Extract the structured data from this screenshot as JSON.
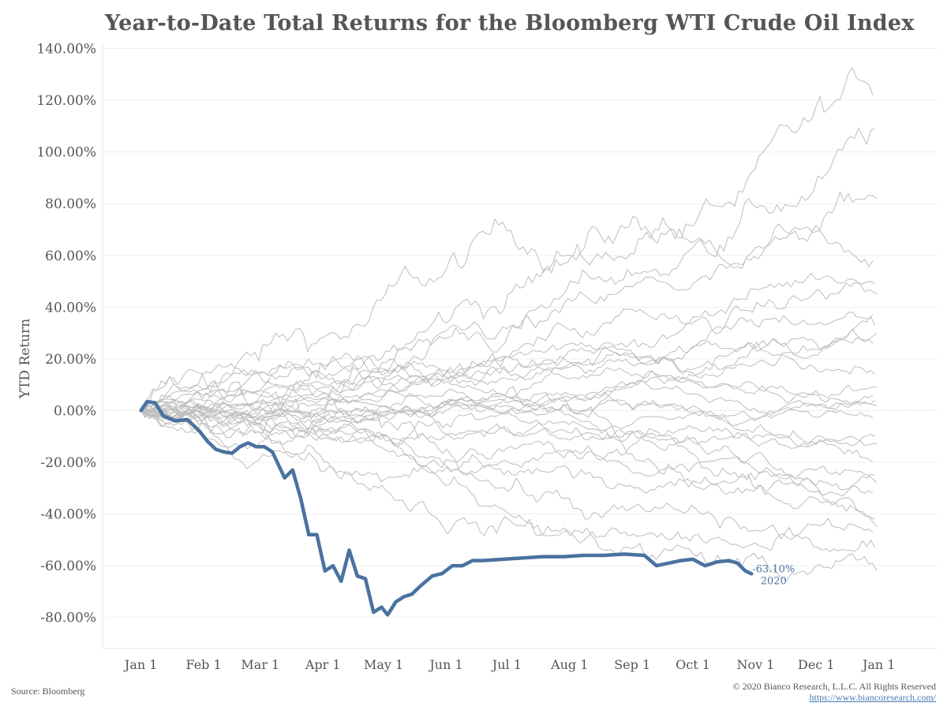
{
  "chart_data": {
    "type": "line",
    "title": "Year-to-Date Total Returns for the Bloomberg WTI Crude Oil Index",
    "ylabel": "YTD Return",
    "xlabel": "",
    "ylim": [
      -0.92,
      1.42
    ],
    "y_ticks": [
      1.4,
      1.2,
      1.0,
      0.8,
      0.6,
      0.4,
      0.2,
      0.0,
      -0.2,
      -0.4,
      -0.6,
      -0.8
    ],
    "y_tick_labels": [
      "140.00%",
      "120.00%",
      "100.00%",
      "80.00%",
      "60.00%",
      "40.00%",
      "20.00%",
      "0.00%",
      "-20.00%",
      "-40.00%",
      "-60.00%",
      "-80.00%"
    ],
    "x_ticks": [
      1,
      32,
      60,
      91,
      121,
      152,
      182,
      213,
      244,
      274,
      305,
      335,
      366
    ],
    "x_tick_labels": [
      "Jan 1",
      "Feb 1",
      "Mar 1",
      "Apr 1",
      "May 1",
      "Jun 1",
      "Jul 1",
      "Aug 1",
      "Sep 1",
      "Oct 1",
      "Nov 1",
      "Dec 1",
      "Jan 1"
    ],
    "xlim": [
      -18,
      395
    ],
    "grid": true,
    "highlight_series": {
      "name": "2020",
      "end_label": "-63.10%",
      "color": "#4a72a0",
      "points": [
        [
          1,
          0
        ],
        [
          4,
          0.035
        ],
        [
          8,
          0.03
        ],
        [
          12,
          -0.02
        ],
        [
          18,
          -0.04
        ],
        [
          24,
          -0.035
        ],
        [
          30,
          -0.08
        ],
        [
          34,
          -0.12
        ],
        [
          38,
          -0.15
        ],
        [
          42,
          -0.16
        ],
        [
          46,
          -0.165
        ],
        [
          50,
          -0.14
        ],
        [
          54,
          -0.125
        ],
        [
          58,
          -0.14
        ],
        [
          62,
          -0.14
        ],
        [
          66,
          -0.16
        ],
        [
          72,
          -0.26
        ],
        [
          76,
          -0.23
        ],
        [
          80,
          -0.34
        ],
        [
          84,
          -0.48
        ],
        [
          88,
          -0.48
        ],
        [
          92,
          -0.62
        ],
        [
          96,
          -0.6
        ],
        [
          100,
          -0.66
        ],
        [
          104,
          -0.54
        ],
        [
          108,
          -0.64
        ],
        [
          112,
          -0.65
        ],
        [
          116,
          -0.78
        ],
        [
          120,
          -0.76
        ],
        [
          123,
          -0.79
        ],
        [
          127,
          -0.74
        ],
        [
          131,
          -0.72
        ],
        [
          135,
          -0.71
        ],
        [
          139,
          -0.68
        ],
        [
          145,
          -0.64
        ],
        [
          150,
          -0.63
        ],
        [
          155,
          -0.6
        ],
        [
          160,
          -0.6
        ],
        [
          165,
          -0.58
        ],
        [
          170,
          -0.58
        ],
        [
          180,
          -0.575
        ],
        [
          190,
          -0.57
        ],
        [
          200,
          -0.565
        ],
        [
          210,
          -0.565
        ],
        [
          220,
          -0.56
        ],
        [
          230,
          -0.56
        ],
        [
          240,
          -0.555
        ],
        [
          250,
          -0.56
        ],
        [
          256,
          -0.6
        ],
        [
          262,
          -0.59
        ],
        [
          268,
          -0.58
        ],
        [
          274,
          -0.575
        ],
        [
          280,
          -0.6
        ],
        [
          286,
          -0.585
        ],
        [
          292,
          -0.58
        ],
        [
          296,
          -0.59
        ],
        [
          300,
          -0.62
        ],
        [
          303,
          -0.631
        ]
      ]
    },
    "background_series_color": "#bdbdbd",
    "background_series_final_values": [
      1.22,
      1.09,
      0.82,
      0.58,
      0.49,
      0.45,
      0.37,
      0.33,
      0.3,
      0.26,
      0.14,
      0.09,
      0.06,
      0.04,
      0.02,
      -0.03,
      -0.1,
      -0.13,
      -0.2,
      -0.25,
      -0.28,
      -0.32,
      -0.42,
      -0.45,
      -0.47,
      -0.53,
      -0.62
    ]
  },
  "footer": {
    "source": "Source: Bloomberg",
    "copyright": "© 2020 Bianco Research, L.L.C. All Rights Reserved",
    "link": "https://www.biancoresearch.com/"
  }
}
